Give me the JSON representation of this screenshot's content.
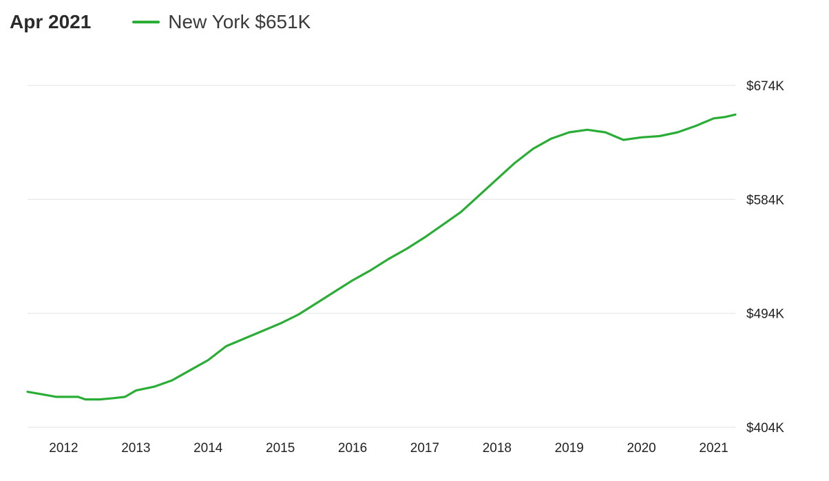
{
  "header": {
    "date": "Apr 2021",
    "legend_name": "New York",
    "legend_value": "$651K"
  },
  "colors": {
    "series": "#2aad35",
    "grid": "#e6e6e6",
    "text": "#222222"
  },
  "chart_data": {
    "type": "line",
    "title": "",
    "xlabel": "",
    "ylabel": "",
    "xlim": [
      2011.5,
      2021.3
    ],
    "ylim": [
      404,
      674
    ],
    "yticks": [
      674,
      584,
      494,
      404
    ],
    "ytick_labels": [
      "$674K",
      "$584K",
      "$494K",
      "$404K"
    ],
    "xticks": [
      2012,
      2013,
      2014,
      2015,
      2016,
      2017,
      2018,
      2019,
      2020,
      2021
    ],
    "xtick_labels": [
      "2012",
      "2013",
      "2014",
      "2015",
      "2016",
      "2017",
      "2018",
      "2019",
      "2020",
      "2021"
    ],
    "grid": true,
    "legend_position": "top-left",
    "series": [
      {
        "name": "New York",
        "x": [
          2011.5,
          2011.7,
          2011.9,
          2012.0,
          2012.2,
          2012.3,
          2012.5,
          2012.7,
          2012.85,
          2013.0,
          2013.25,
          2013.5,
          2013.75,
          2014.0,
          2014.25,
          2014.5,
          2014.75,
          2015.0,
          2015.25,
          2015.5,
          2015.75,
          2016.0,
          2016.25,
          2016.5,
          2016.75,
          2017.0,
          2017.25,
          2017.5,
          2017.75,
          2018.0,
          2018.25,
          2018.5,
          2018.75,
          2019.0,
          2019.25,
          2019.5,
          2019.75,
          2020.0,
          2020.25,
          2020.5,
          2020.75,
          2021.0,
          2021.15,
          2021.3
        ],
        "values": [
          432,
          430,
          428,
          428,
          428,
          426,
          426,
          427,
          428,
          433,
          436,
          441,
          449,
          457,
          468,
          474,
          480,
          486,
          493,
          502,
          511,
          520,
          528,
          537,
          545,
          554,
          564,
          574,
          587,
          600,
          613,
          624,
          632,
          637,
          639,
          637,
          631,
          633,
          634,
          637,
          642,
          648,
          649,
          651
        ]
      }
    ]
  }
}
